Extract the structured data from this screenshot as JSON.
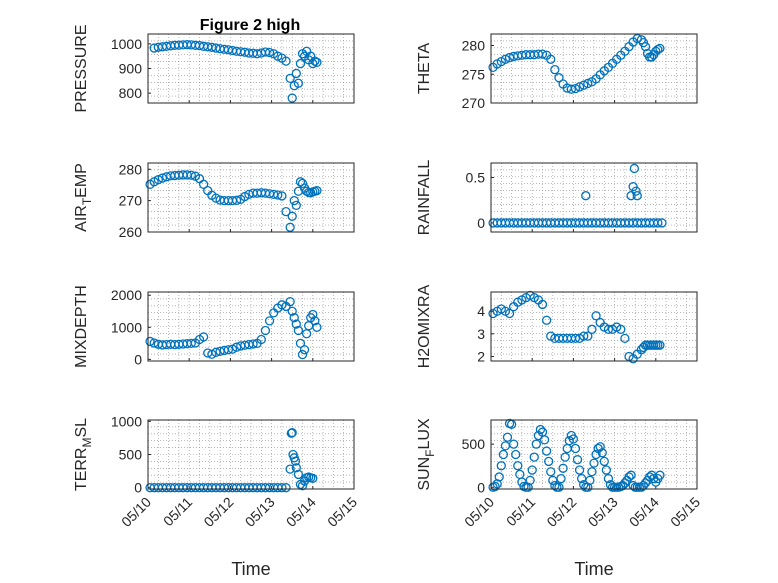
{
  "title": "Figure 2 high",
  "xlabel": "Time",
  "colors": {
    "marker": "#0072bd",
    "axis": "#262626",
    "grid": "#8c8c8c"
  },
  "chart_data": [
    {
      "type": "scatter",
      "ylabel": "PRESSURE",
      "ylim": [
        760,
        1040
      ],
      "yticks": [
        800,
        900,
        1000
      ],
      "xlim": [
        0,
        5
      ],
      "grid": true,
      "x": [
        0.15,
        0.25,
        0.35,
        0.45,
        0.55,
        0.65,
        0.75,
        0.85,
        0.95,
        1.05,
        1.15,
        1.25,
        1.35,
        1.45,
        1.55,
        1.65,
        1.75,
        1.85,
        1.95,
        2.05,
        2.15,
        2.25,
        2.35,
        2.45,
        2.55,
        2.65,
        2.75,
        2.85,
        2.95,
        3.05,
        3.15,
        3.25,
        3.35,
        3.45,
        3.5,
        3.55,
        3.6,
        3.65,
        3.7,
        3.75,
        3.8,
        3.85,
        3.9,
        3.95,
        4.0,
        4.05,
        4.1
      ],
      "y": [
        983,
        986,
        988,
        990,
        992,
        994,
        995,
        996,
        997,
        996,
        994,
        993,
        990,
        988,
        986,
        983,
        980,
        978,
        976,
        973,
        970,
        968,
        966,
        963,
        962,
        960,
        963,
        967,
        965,
        960,
        950,
        942,
        930,
        860,
        780,
        830,
        880,
        840,
        920,
        960,
        950,
        970,
        935,
        950,
        920,
        930,
        925
      ]
    },
    {
      "type": "scatter",
      "ylabel": "THETA",
      "ylim": [
        270,
        282
      ],
      "yticks": [
        270,
        275,
        280
      ],
      "xlim": [
        0,
        5
      ],
      "grid": true,
      "x": [
        0.05,
        0.15,
        0.25,
        0.35,
        0.45,
        0.55,
        0.65,
        0.75,
        0.85,
        0.95,
        1.05,
        1.15,
        1.25,
        1.35,
        1.45,
        1.55,
        1.65,
        1.75,
        1.85,
        1.95,
        2.05,
        2.15,
        2.25,
        2.35,
        2.45,
        2.55,
        2.65,
        2.75,
        2.85,
        2.95,
        3.05,
        3.15,
        3.25,
        3.35,
        3.45,
        3.55,
        3.65,
        3.7,
        3.75,
        3.8,
        3.85,
        3.9,
        3.95,
        4.0,
        4.05,
        4.1
      ],
      "y": [
        276.2,
        276.8,
        277.2,
        277.6,
        277.9,
        278.1,
        278.2,
        278.3,
        278.4,
        278.4,
        278.4,
        278.5,
        278.5,
        278.3,
        277.6,
        275.8,
        274.4,
        273.3,
        272.6,
        272.4,
        272.5,
        272.8,
        273.1,
        273.4,
        273.7,
        274.2,
        274.9,
        275.6,
        276.2,
        276.9,
        277.6,
        278.3,
        279.0,
        279.8,
        280.6,
        281.2,
        281.0,
        280.5,
        279.8,
        278.6,
        278.0,
        278.0,
        278.4,
        279.0,
        279.3,
        279.5
      ]
    },
    {
      "type": "scatter",
      "ylabel": "AIR_TEMP",
      "ylim": [
        260,
        282
      ],
      "yticks": [
        260,
        270,
        280
      ],
      "xlim": [
        0,
        5
      ],
      "grid": true,
      "x": [
        0.05,
        0.15,
        0.25,
        0.35,
        0.45,
        0.55,
        0.65,
        0.75,
        0.85,
        0.95,
        1.05,
        1.15,
        1.25,
        1.35,
        1.45,
        1.55,
        1.65,
        1.75,
        1.85,
        1.95,
        2.05,
        2.15,
        2.25,
        2.35,
        2.45,
        2.55,
        2.65,
        2.75,
        2.85,
        2.95,
        3.05,
        3.15,
        3.25,
        3.35,
        3.45,
        3.5,
        3.55,
        3.6,
        3.65,
        3.7,
        3.75,
        3.8,
        3.85,
        3.9,
        3.95,
        4.0,
        4.05,
        4.1
      ],
      "y": [
        275.2,
        276.0,
        276.7,
        277.2,
        277.6,
        277.9,
        278.0,
        278.1,
        278.2,
        278.2,
        278.1,
        277.8,
        277.0,
        275.2,
        273.2,
        271.7,
        270.8,
        270.2,
        270.0,
        270.0,
        270.0,
        270.1,
        270.4,
        271.3,
        272.0,
        272.4,
        272.4,
        272.5,
        272.4,
        272.2,
        272.0,
        271.8,
        271.5,
        266.5,
        261.5,
        265.0,
        270.0,
        268.5,
        273.0,
        276.0,
        275.5,
        274.0,
        273.0,
        272.6,
        272.5,
        272.8,
        273.0,
        273.2
      ]
    },
    {
      "type": "scatter",
      "ylabel": "RAINFALL",
      "ylim": [
        -0.1,
        0.66
      ],
      "yticks": [
        0,
        0.5
      ],
      "ytick_labels": [
        "0",
        "0.5"
      ],
      "xlim": [
        0,
        5
      ],
      "grid": true,
      "x": [
        0.05,
        0.15,
        0.25,
        0.35,
        0.45,
        0.55,
        0.65,
        0.75,
        0.85,
        0.95,
        1.05,
        1.15,
        1.25,
        1.35,
        1.45,
        1.55,
        1.65,
        1.75,
        1.85,
        1.95,
        2.05,
        2.15,
        2.25,
        2.35,
        2.45,
        2.55,
        2.65,
        2.75,
        2.85,
        2.95,
        3.05,
        3.15,
        3.25,
        3.35,
        3.45,
        3.55,
        3.65,
        3.75,
        3.85,
        3.95,
        4.05,
        4.15,
        2.3,
        3.4,
        3.45,
        3.48,
        3.52,
        3.55
      ],
      "y": [
        0,
        0,
        0,
        0,
        0,
        0,
        0,
        0,
        0,
        0,
        0,
        0,
        0,
        0,
        0,
        0,
        0,
        0,
        0,
        0,
        0,
        0,
        0,
        0,
        0,
        0,
        0,
        0,
        0,
        0,
        0,
        0,
        0,
        0,
        0,
        0,
        0,
        0,
        0,
        0,
        0,
        0,
        0.3,
        0.3,
        0.4,
        0.6,
        0.35,
        0.3
      ]
    },
    {
      "type": "scatter",
      "ylabel": "MIXDEPTH",
      "ylim": [
        -50,
        2100
      ],
      "yticks": [
        0,
        1000,
        2000
      ],
      "xlim": [
        0,
        5
      ],
      "grid": true,
      "x": [
        0.05,
        0.15,
        0.25,
        0.35,
        0.45,
        0.55,
        0.65,
        0.75,
        0.85,
        0.95,
        1.05,
        1.15,
        1.25,
        1.35,
        1.45,
        1.55,
        1.65,
        1.75,
        1.85,
        1.95,
        2.05,
        2.15,
        2.25,
        2.35,
        2.45,
        2.55,
        2.65,
        2.75,
        2.85,
        2.95,
        3.05,
        3.15,
        3.25,
        3.35,
        3.45,
        3.5,
        3.55,
        3.6,
        3.65,
        3.7,
        3.75,
        3.8,
        3.85,
        3.9,
        3.95,
        4.0,
        4.05,
        4.1
      ],
      "y": [
        560,
        510,
        470,
        450,
        460,
        470,
        460,
        470,
        480,
        490,
        500,
        510,
        620,
        700,
        200,
        160,
        220,
        250,
        280,
        300,
        320,
        380,
        420,
        440,
        460,
        480,
        500,
        620,
        900,
        1200,
        1450,
        1600,
        1700,
        1650,
        1800,
        1500,
        1300,
        1100,
        900,
        500,
        150,
        300,
        800,
        1050,
        1300,
        1400,
        1200,
        1000
      ]
    },
    {
      "type": "scatter",
      "ylabel": "H2OMIXRA",
      "ylim": [
        1.8,
        4.85
      ],
      "yticks": [
        2,
        3,
        4
      ],
      "xlim": [
        0,
        5
      ],
      "grid": true,
      "x": [
        0.05,
        0.15,
        0.25,
        0.35,
        0.45,
        0.55,
        0.65,
        0.75,
        0.85,
        0.95,
        1.05,
        1.15,
        1.25,
        1.35,
        1.45,
        1.55,
        1.65,
        1.75,
        1.85,
        1.95,
        2.05,
        2.15,
        2.25,
        2.35,
        2.45,
        2.55,
        2.65,
        2.75,
        2.85,
        2.95,
        3.05,
        3.15,
        3.25,
        3.35,
        3.45,
        3.55,
        3.65,
        3.7,
        3.75,
        3.8,
        3.85,
        3.9,
        3.95,
        4.0,
        4.05,
        4.1
      ],
      "y": [
        3.9,
        4.0,
        4.1,
        4.0,
        3.9,
        4.2,
        4.4,
        4.5,
        4.6,
        4.7,
        4.6,
        4.5,
        4.3,
        3.6,
        2.9,
        2.8,
        2.8,
        2.8,
        2.8,
        2.8,
        2.8,
        2.8,
        2.9,
        2.9,
        3.2,
        3.8,
        3.5,
        3.3,
        3.2,
        3.2,
        3.3,
        3.2,
        2.8,
        2.0,
        1.9,
        2.1,
        2.3,
        2.4,
        2.5,
        2.5,
        2.5,
        2.5,
        2.5,
        2.5,
        2.5,
        2.5
      ]
    },
    {
      "type": "scatter",
      "ylabel": "TERR_MSL",
      "ylim": [
        -20,
        1020
      ],
      "yticks": [
        0,
        500,
        1000
      ],
      "xlim": [
        0,
        5
      ],
      "grid": true,
      "x": [
        0.05,
        0.15,
        0.25,
        0.35,
        0.45,
        0.55,
        0.65,
        0.75,
        0.85,
        0.95,
        1.05,
        1.15,
        1.25,
        1.35,
        1.45,
        1.55,
        1.65,
        1.75,
        1.85,
        1.95,
        2.05,
        2.15,
        2.25,
        2.35,
        2.45,
        2.55,
        2.65,
        2.75,
        2.85,
        2.95,
        3.05,
        3.15,
        3.25,
        3.35,
        3.45,
        3.48,
        3.5,
        3.52,
        3.55,
        3.58,
        3.6,
        3.65,
        3.7,
        3.75,
        3.8,
        3.85,
        3.9,
        3.95,
        4.0
      ],
      "y": [
        0,
        0,
        0,
        0,
        0,
        0,
        0,
        0,
        0,
        0,
        0,
        0,
        0,
        0,
        0,
        0,
        0,
        0,
        0,
        0,
        0,
        0,
        0,
        0,
        0,
        0,
        0,
        0,
        0,
        0,
        0,
        0,
        0,
        0,
        280,
        820,
        830,
        500,
        450,
        400,
        300,
        200,
        50,
        30,
        100,
        150,
        160,
        150,
        140
      ]
    },
    {
      "type": "scatter",
      "ylabel": "SUN_FLUX",
      "ylim": [
        -20,
        780
      ],
      "yticks": [
        0,
        500
      ],
      "xlim": [
        0,
        5
      ],
      "grid": true,
      "x": [
        0.05,
        0.1,
        0.15,
        0.2,
        0.25,
        0.3,
        0.35,
        0.4,
        0.45,
        0.5,
        0.55,
        0.6,
        0.65,
        0.7,
        0.75,
        0.8,
        0.85,
        0.9,
        0.95,
        1.0,
        1.05,
        1.1,
        1.15,
        1.2,
        1.25,
        1.3,
        1.35,
        1.4,
        1.45,
        1.5,
        1.55,
        1.6,
        1.65,
        1.7,
        1.75,
        1.8,
        1.85,
        1.9,
        1.95,
        2.0,
        2.05,
        2.1,
        2.15,
        2.2,
        2.25,
        2.3,
        2.35,
        2.4,
        2.45,
        2.5,
        2.55,
        2.6,
        2.65,
        2.7,
        2.75,
        2.8,
        2.85,
        2.9,
        2.95,
        3.0,
        3.05,
        3.1,
        3.15,
        3.2,
        3.25,
        3.3,
        3.35,
        3.4,
        3.45,
        3.5,
        3.55,
        3.6,
        3.65,
        3.7,
        3.75,
        3.8,
        3.85,
        3.9,
        3.95,
        4.0,
        4.05,
        4.1
      ],
      "y": [
        0,
        10,
        40,
        120,
        250,
        380,
        480,
        580,
        740,
        730,
        500,
        380,
        250,
        150,
        60,
        10,
        0,
        0,
        80,
        200,
        350,
        500,
        600,
        670,
        640,
        550,
        420,
        300,
        180,
        80,
        20,
        0,
        0,
        100,
        220,
        350,
        450,
        540,
        600,
        560,
        450,
        320,
        200,
        100,
        30,
        0,
        0,
        80,
        180,
        280,
        380,
        450,
        470,
        400,
        300,
        200,
        100,
        30,
        0,
        0,
        0,
        0,
        10,
        20,
        50,
        80,
        120,
        140,
        20,
        0,
        0,
        0,
        0,
        20,
        50,
        80,
        120,
        140,
        100,
        60,
        100,
        140
      ]
    }
  ],
  "x_ticks": [
    0,
    1,
    2,
    3,
    4,
    5
  ],
  "x_tick_labels": [
    "05/10",
    "05/11",
    "05/12",
    "05/13",
    "05/14",
    "05/15"
  ]
}
